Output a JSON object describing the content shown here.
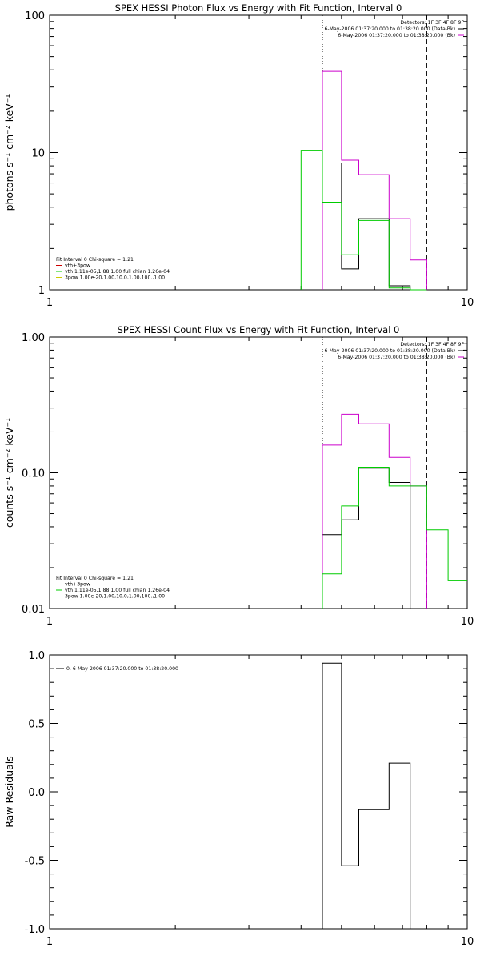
{
  "chart_data": [
    {
      "type": "line",
      "id": "photon",
      "title": "SPEX HESSI Photon Flux vs Energy with Fit Function, Interval 0",
      "ylabel": "photons s⁻¹ cm⁻² keV⁻¹",
      "xlabel": "",
      "x_scale": "log",
      "y_scale": "log",
      "xlim": [
        1,
        10
      ],
      "ylim": [
        1,
        100
      ],
      "x_ticks": [
        1,
        10
      ],
      "x_tick_labels": [
        "1",
        "10"
      ],
      "y_ticks": [
        1,
        10,
        100
      ],
      "y_tick_labels": [
        "1",
        "10",
        "100"
      ],
      "vlines": [
        {
          "x": 4.5,
          "style": "dotted"
        },
        {
          "x": 8.0,
          "style": "dashed"
        }
      ],
      "legend_top": {
        "header": "Detectors: 1F 3F 4F 8F 9F",
        "entries": [
          {
            "label": "6-May-2006 01:37:20.000 to 01:38:20.000 (Data-Bk)",
            "color": "#000000"
          },
          {
            "label": "6-May-2006 01:37:20.000 to 01:38:20.000 (Bk)",
            "color": "#cc00cc"
          }
        ]
      },
      "legend_bottom": {
        "header": "Fit Interval 0   Chi-square = 1.21",
        "entries": [
          {
            "label": "vth+3pow",
            "color": "#cc0000"
          },
          {
            "label": "vth 1.11e-05,1.88,1.00  full chian 1.26e-04",
            "color": "#00cc00"
          },
          {
            "label": "3pow 1.00e-20,1.00,10.0,1.00,100.,1.00",
            "color": "#cccc00"
          }
        ]
      },
      "series": [
        {
          "name": "6-May-2006 01:37:20.000 to 01:38:20.000 (Data-Bk)",
          "color": "#000000",
          "x": [
            4.5,
            5.0,
            5.0,
            5.5,
            5.5,
            6.5,
            6.5,
            7.3,
            7.3,
            8.0
          ],
          "y": [
            8.4,
            8.4,
            1.42,
            1.42,
            3.3,
            3.3,
            1.07,
            1.07,
            1,
            1
          ]
        },
        {
          "name": "6-May-2006 01:37:20.000 to 01:38:20.000 (Bk)",
          "color": "#cc00cc",
          "x": [
            4.5,
            4.5,
            5.0,
            5.0,
            5.5,
            5.5,
            6.5,
            6.5,
            7.3,
            7.3,
            8.0,
            8.0
          ],
          "y": [
            1,
            39,
            39,
            8.8,
            8.8,
            6.9,
            6.9,
            3.3,
            3.3,
            1.65,
            1.65,
            1
          ]
        },
        {
          "name": "vth 1.11e-05,1.88,1.00  full chian 1.26e-04",
          "color": "#00cc00",
          "x": [
            4.0,
            4.0,
            4.5,
            4.5,
            5.0,
            5.0,
            5.5,
            5.5,
            6.5,
            6.5,
            7.3,
            7.3,
            8.0
          ],
          "y": [
            1,
            10.4,
            10.4,
            4.35,
            4.35,
            1.8,
            1.8,
            3.2,
            3.2,
            1.03,
            1.03,
            1,
            1
          ]
        }
      ]
    },
    {
      "type": "line",
      "id": "count",
      "title": "SPEX HESSI Count Flux vs Energy with Fit Function, Interval 0",
      "ylabel": "counts s⁻¹ cm⁻² keV⁻¹",
      "xlabel": "",
      "x_scale": "log",
      "y_scale": "log",
      "xlim": [
        1,
        10
      ],
      "ylim": [
        0.01,
        1
      ],
      "x_ticks": [
        1,
        10
      ],
      "x_tick_labels": [
        "1",
        "10"
      ],
      "y_ticks": [
        0.01,
        0.1,
        1
      ],
      "y_tick_labels": [
        "0.01",
        "0.10",
        "1.00"
      ],
      "vlines": [
        {
          "x": 4.5,
          "style": "dotted"
        },
        {
          "x": 8.0,
          "style": "dashed"
        }
      ],
      "legend_top": {
        "header": "Detectors: 1F 3F 4F 8F 9F",
        "entries": [
          {
            "label": "6-May-2006 01:37:20.000 to 01:38:20.000 (Data-Bk)",
            "color": "#000000"
          },
          {
            "label": "6-May-2006 01:37:20.000 to 01:38:20.000 (Bk)",
            "color": "#cc00cc"
          }
        ]
      },
      "legend_bottom": {
        "header": "Fit Interval 0   Chi-square = 1.21",
        "entries": [
          {
            "label": "vth+3pow",
            "color": "#cc0000"
          },
          {
            "label": "vth 1.11e-05,1.88,1.00  full chian 1.26e-04",
            "color": "#00cc00"
          },
          {
            "label": "3pow 1.00e-20,1.00,10.0,1.00,100.,1.00",
            "color": "#cccc00"
          }
        ]
      },
      "series": [
        {
          "name": "6-May-2006 01:37:20.000 to 01:38:20.000 (Data-Bk)",
          "color": "#000000",
          "x": [
            4.5,
            4.5,
            5.0,
            5.0,
            5.5,
            5.5,
            6.5,
            6.5,
            7.3,
            7.3,
            8.0,
            8.0
          ],
          "y": [
            0.01,
            0.035,
            0.035,
            0.045,
            0.045,
            0.108,
            0.108,
            0.085,
            0.085,
            0.01,
            0.01,
            0.01
          ]
        },
        {
          "name": "6-May-2006 01:37:20.000 to 01:38:20.000 (Bk)",
          "color": "#cc00cc",
          "x": [
            4.5,
            4.5,
            5.0,
            5.0,
            5.5,
            5.5,
            6.5,
            6.5,
            7.3,
            7.3,
            8.0,
            8.0
          ],
          "y": [
            0.01,
            0.16,
            0.16,
            0.27,
            0.27,
            0.23,
            0.23,
            0.13,
            0.13,
            0.08,
            0.08,
            0.01
          ]
        },
        {
          "name": "vth 1.11e-05,1.88,1.00  full chian 1.26e-04",
          "color": "#00cc00",
          "x": [
            4.5,
            4.5,
            5.0,
            5.0,
            5.5,
            5.5,
            6.5,
            6.5,
            7.3,
            7.3,
            8.0,
            8.0,
            9.0,
            9.0,
            10.0
          ],
          "y": [
            0.01,
            0.018,
            0.018,
            0.057,
            0.057,
            0.11,
            0.11,
            0.08,
            0.08,
            0.08,
            0.08,
            0.038,
            0.038,
            0.016,
            0.016
          ]
        }
      ]
    },
    {
      "type": "line",
      "id": "residuals",
      "title": "",
      "ylabel": "Raw Residuals",
      "xlabel": "",
      "x_scale": "log",
      "y_scale": "linear",
      "xlim": [
        1,
        10
      ],
      "ylim": [
        -1.0,
        1.0
      ],
      "x_ticks": [
        1,
        10
      ],
      "x_tick_labels": [
        "1",
        "10"
      ],
      "y_ticks": [
        -1.0,
        -0.5,
        0.0,
        0.5,
        1.0
      ],
      "y_tick_labels": [
        "-1.0",
        "-0.5",
        "0.0",
        "0.5",
        "1.0"
      ],
      "legend_top_left": {
        "entries": [
          {
            "label": "0. 6-May-2006 01:37:20.000 to 01:38:20.000",
            "color": "#000000"
          }
        ]
      },
      "series": [
        {
          "name": "0. 6-May-2006 01:37:20.000 to 01:38:20.000",
          "color": "#000000",
          "x": [
            4.5,
            4.5,
            5.0,
            5.0,
            5.5,
            5.5,
            6.5,
            6.5,
            7.3,
            7.3
          ],
          "y": [
            -1.0,
            0.94,
            0.94,
            -0.54,
            -0.54,
            -0.13,
            -0.13,
            0.21,
            0.21,
            -1.0
          ]
        }
      ]
    }
  ]
}
